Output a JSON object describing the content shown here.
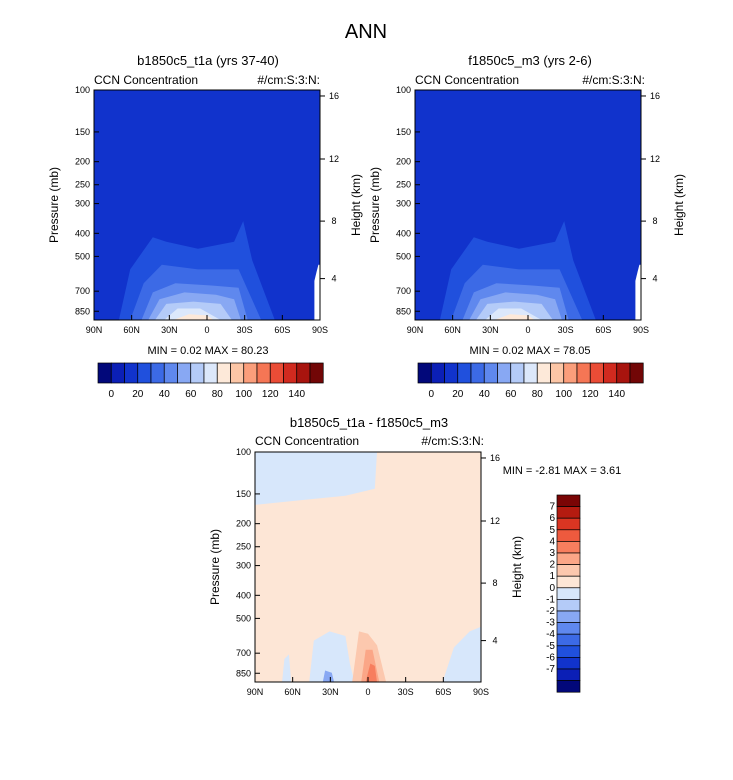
{
  "main_title": "ANN",
  "colors": {
    "seq": [
      "#02087a",
      "#0b1fb6",
      "#1133cc",
      "#2050dd",
      "#3c6ae6",
      "#5f88ee",
      "#88a8f3",
      "#b4cbf8",
      "#dce8fb",
      "#fde9d9",
      "#fcc6a6",
      "#fb9e7b",
      "#f57655",
      "#ea4c36",
      "#d12a1f",
      "#a8140e",
      "#720606"
    ],
    "diff": [
      "#02087a",
      "#0b1fb6",
      "#1133cc",
      "#2050dd",
      "#3c6ae6",
      "#5f88ee",
      "#88a8f3",
      "#b4cbf8",
      "#d7e7fb",
      "#fde6d6",
      "#fcc8ae",
      "#fba687",
      "#f77e5e",
      "#ee5a3e",
      "#da3522",
      "#b41b10",
      "#7a0505"
    ]
  },
  "chart_data": [
    {
      "id": "left",
      "type": "contour",
      "title": "b1850c5_t1a (yrs 37-40)",
      "left_label": "CCN Concentration",
      "right_label": "#/cm:S:3:N:",
      "ylabel": "Pressure (mb)",
      "y2label": "Height (km)",
      "xticks": [
        "90N",
        "60N",
        "30N",
        "0",
        "30S",
        "60S",
        "90S"
      ],
      "yticks": [
        "100",
        "150",
        "200",
        "250",
        "300",
        "400",
        "500",
        "700",
        "850"
      ],
      "y2ticks": [
        "16",
        "12",
        "8",
        "4"
      ],
      "stats": "MIN =  0.02  MAX =  80.23",
      "min": 0.02,
      "max": 80.23
    },
    {
      "id": "right",
      "type": "contour",
      "title": "f1850c5_m3 (yrs 2-6)",
      "left_label": "CCN Concentration",
      "right_label": "#/cm:S:3:N:",
      "ylabel": "Pressure (mb)",
      "y2label": "Height (km)",
      "xticks": [
        "90N",
        "60N",
        "30N",
        "0",
        "30S",
        "60S",
        "90S"
      ],
      "yticks": [
        "100",
        "150",
        "200",
        "250",
        "300",
        "400",
        "500",
        "700",
        "850"
      ],
      "y2ticks": [
        "16",
        "12",
        "8",
        "4"
      ],
      "stats": "MIN =  0.02  MAX =  78.05",
      "min": 0.02,
      "max": 78.05
    },
    {
      "id": "diff",
      "type": "contour",
      "title": "b1850c5_t1a - f1850c5_m3",
      "left_label": "CCN Concentration",
      "right_label": "#/cm:S:3:N:",
      "ylabel": "Pressure (mb)",
      "y2label": "Height (km)",
      "xticks": [
        "90N",
        "60N",
        "30N",
        "0",
        "30S",
        "60S",
        "90S"
      ],
      "yticks": [
        "100",
        "150",
        "200",
        "250",
        "300",
        "400",
        "500",
        "700",
        "850"
      ],
      "y2ticks": [
        "16",
        "12",
        "8",
        "4"
      ],
      "stats": "MIN =  -2.81  MAX =  3.61",
      "min": -2.81,
      "max": 3.61
    }
  ],
  "colorbar_seq": {
    "labels": [
      "0",
      "20",
      "40",
      "60",
      "80",
      "100",
      "120",
      "140"
    ]
  },
  "colorbar_diff": {
    "labels": [
      "7",
      "6",
      "5",
      "4",
      "3",
      "2",
      "1",
      "0",
      "-1",
      "-2",
      "-3",
      "-4",
      "-5",
      "-6",
      "-7"
    ]
  }
}
